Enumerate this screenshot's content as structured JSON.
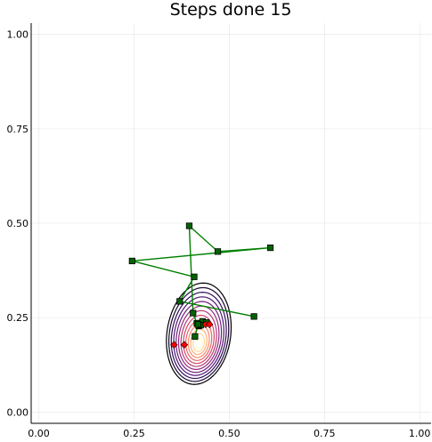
{
  "chart_data": {
    "type": "line",
    "title": "Steps done 15",
    "xlabel": "",
    "ylabel": "",
    "xlim": [
      -0.02,
      1.03
    ],
    "ylim": [
      -0.03,
      1.03
    ],
    "xticks": [
      0.0,
      0.25,
      0.5,
      0.75,
      1.0
    ],
    "xtick_labels": [
      "0.00",
      "0.25",
      "0.50",
      "0.75",
      "1.00"
    ],
    "yticks": [
      0.0,
      0.25,
      0.5,
      0.75,
      1.0
    ],
    "ytick_labels": [
      "0.00",
      "0.25",
      "0.50",
      "0.75",
      "1.00"
    ],
    "grid": true,
    "legend": "none",
    "contour": {
      "center": [
        0.42,
        0.205
      ],
      "levels": 13,
      "colormap": [
        "#000004",
        "#3b0f70",
        "#8c2981",
        "#de4968",
        "#fe9f6d",
        "#fcfdbf"
      ]
    },
    "series": [
      {
        "marker": "square",
        "color": "#008000",
        "marker_fill": "#006400",
        "x": [
          0.565,
          0.37,
          0.408,
          0.245,
          0.608,
          0.47,
          0.395,
          0.405,
          0.415,
          0.42,
          0.43,
          0.44,
          0.425,
          0.418,
          0.41
        ],
        "y": [
          0.253,
          0.293,
          0.358,
          0.4,
          0.435,
          0.425,
          0.493,
          0.262,
          0.235,
          0.228,
          0.24,
          0.237,
          0.23,
          0.232,
          0.2
        ]
      },
      {
        "marker": "diamond",
        "color": "#ff0000",
        "x": [
          0.355,
          0.382,
          0.438,
          0.448
        ],
        "y": [
          0.178,
          0.178,
          0.232,
          0.232
        ]
      }
    ]
  }
}
